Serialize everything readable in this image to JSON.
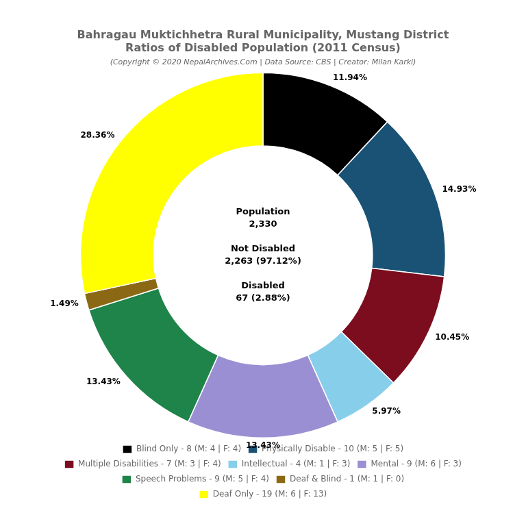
{
  "chart_data": {
    "type": "doughnut",
    "title": [
      "Bahragau Muktichhetra Rural Municipality, Mustang District",
      "Ratios of Disabled Population (2011 Census)"
    ],
    "subtitle": "(Copyright © 2020 NepalArchives.Com | Data Source: CBS | Creator: Milan Karki)",
    "categories": [
      "Blind Only - 8 (M: 4 | F: 4)",
      "Physically Disable - 10 (M: 5 | F: 5)",
      "Multiple Disabilities - 7 (M: 3 | F: 4)",
      "Intellectual - 4 (M: 1 | F: 3)",
      "Mental - 9 (M: 6 | F: 3)",
      "Speech Problems - 9 (M: 5 | F: 4)",
      "Deaf & Blind - 1 (M: 1 | F: 0)",
      "Deaf Only - 19 (M: 6 | F: 13)"
    ],
    "values": [
      11.94,
      14.93,
      10.45,
      5.97,
      13.43,
      13.43,
      1.49,
      28.36
    ],
    "value_labels": [
      "11.94%",
      "14.93%",
      "10.45%",
      "5.97%",
      "13.43%",
      "13.43%",
      "1.49%",
      "28.36%"
    ],
    "colors": [
      "#000000",
      "#1a5276",
      "#7b0d1e",
      "#87ceeb",
      "#9b8fd4",
      "#1e8449",
      "#8b6914",
      "#ffff00"
    ],
    "data_labels": true,
    "legend": "bottom",
    "annotations": [
      "Population\n2,330\n\nNot Disabled\n2,263 (97.12%)\n\nDisabled\n67 (2.88%)"
    ]
  }
}
